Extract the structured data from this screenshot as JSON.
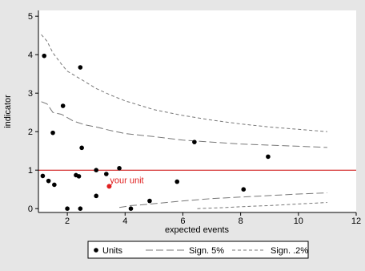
{
  "chart_data": {
    "type": "scatter",
    "xlabel": "expected events",
    "ylabel": "indicator",
    "xlim": [
      1,
      12
    ],
    "ylim": [
      -0.1,
      5.15
    ],
    "x_ticks": [
      2,
      4,
      6,
      8,
      10,
      12
    ],
    "y_ticks": [
      0,
      1,
      2,
      3,
      4,
      5
    ],
    "grid": false,
    "legend_position": "bottom",
    "reference_line": {
      "y": 1,
      "color": "#cc0000"
    },
    "highlight": {
      "label": "your unit",
      "x": 3.45,
      "y": 0.58,
      "color": "#e02020"
    },
    "series": [
      {
        "name": "Units",
        "kind": "points",
        "color": "#000000",
        "points": [
          [
            1.2,
            3.97
          ],
          [
            1.15,
            0.85
          ],
          [
            1.35,
            0.72
          ],
          [
            1.5,
            1.97
          ],
          [
            1.55,
            0.62
          ],
          [
            1.85,
            2.67
          ],
          [
            2.0,
            0.0
          ],
          [
            2.3,
            0.87
          ],
          [
            2.4,
            0.84
          ],
          [
            2.45,
            0.0
          ],
          [
            2.45,
            3.67
          ],
          [
            2.5,
            1.58
          ],
          [
            3.0,
            1.0
          ],
          [
            3.0,
            0.33
          ],
          [
            3.35,
            0.9
          ],
          [
            3.8,
            1.05
          ],
          [
            4.2,
            0.0
          ],
          [
            4.85,
            0.2
          ],
          [
            5.8,
            0.7
          ],
          [
            6.4,
            1.73
          ],
          [
            8.1,
            0.5
          ],
          [
            8.95,
            1.35
          ]
        ]
      },
      {
        "name": "Sign. 5%",
        "kind": "line",
        "dash": "long",
        "color": "#777777",
        "lines": [
          [
            [
              1.1,
              2.78
            ],
            [
              1.3,
              2.72
            ],
            [
              1.5,
              2.5
            ],
            [
              1.8,
              2.45
            ],
            [
              2.2,
              2.28
            ],
            [
              2.6,
              2.18
            ],
            [
              3.0,
              2.12
            ],
            [
              3.5,
              2.03
            ],
            [
              4.0,
              1.95
            ],
            [
              5.0,
              1.87
            ],
            [
              6.0,
              1.78
            ],
            [
              7.0,
              1.73
            ],
            [
              8.0,
              1.68
            ],
            [
              9.0,
              1.65
            ],
            [
              10.0,
              1.62
            ],
            [
              11.0,
              1.59
            ]
          ],
          [
            [
              3.8,
              0.03
            ],
            [
              4.2,
              0.08
            ],
            [
              4.6,
              0.1
            ],
            [
              5.0,
              0.13
            ],
            [
              6.0,
              0.2
            ],
            [
              7.0,
              0.26
            ],
            [
              8.0,
              0.3
            ],
            [
              9.0,
              0.34
            ],
            [
              10.0,
              0.38
            ],
            [
              11.0,
              0.41
            ]
          ]
        ]
      },
      {
        "name": "Sign. .2%",
        "kind": "line",
        "dash": "short",
        "color": "#777777",
        "lines": [
          [
            [
              1.1,
              4.52
            ],
            [
              1.3,
              4.35
            ],
            [
              1.5,
              4.05
            ],
            [
              1.8,
              3.75
            ],
            [
              2.0,
              3.57
            ],
            [
              2.5,
              3.35
            ],
            [
              3.0,
              3.12
            ],
            [
              3.5,
              2.95
            ],
            [
              4.0,
              2.8
            ],
            [
              5.0,
              2.57
            ],
            [
              6.0,
              2.42
            ],
            [
              7.0,
              2.3
            ],
            [
              8.0,
              2.2
            ],
            [
              9.0,
              2.12
            ],
            [
              10.0,
              2.06
            ],
            [
              11.0,
              2.0
            ]
          ],
          [
            [
              6.5,
              0.0
            ],
            [
              7.5,
              0.03
            ],
            [
              8.0,
              0.05
            ],
            [
              9.0,
              0.08
            ],
            [
              10.0,
              0.12
            ],
            [
              11.0,
              0.16
            ]
          ]
        ]
      }
    ]
  }
}
